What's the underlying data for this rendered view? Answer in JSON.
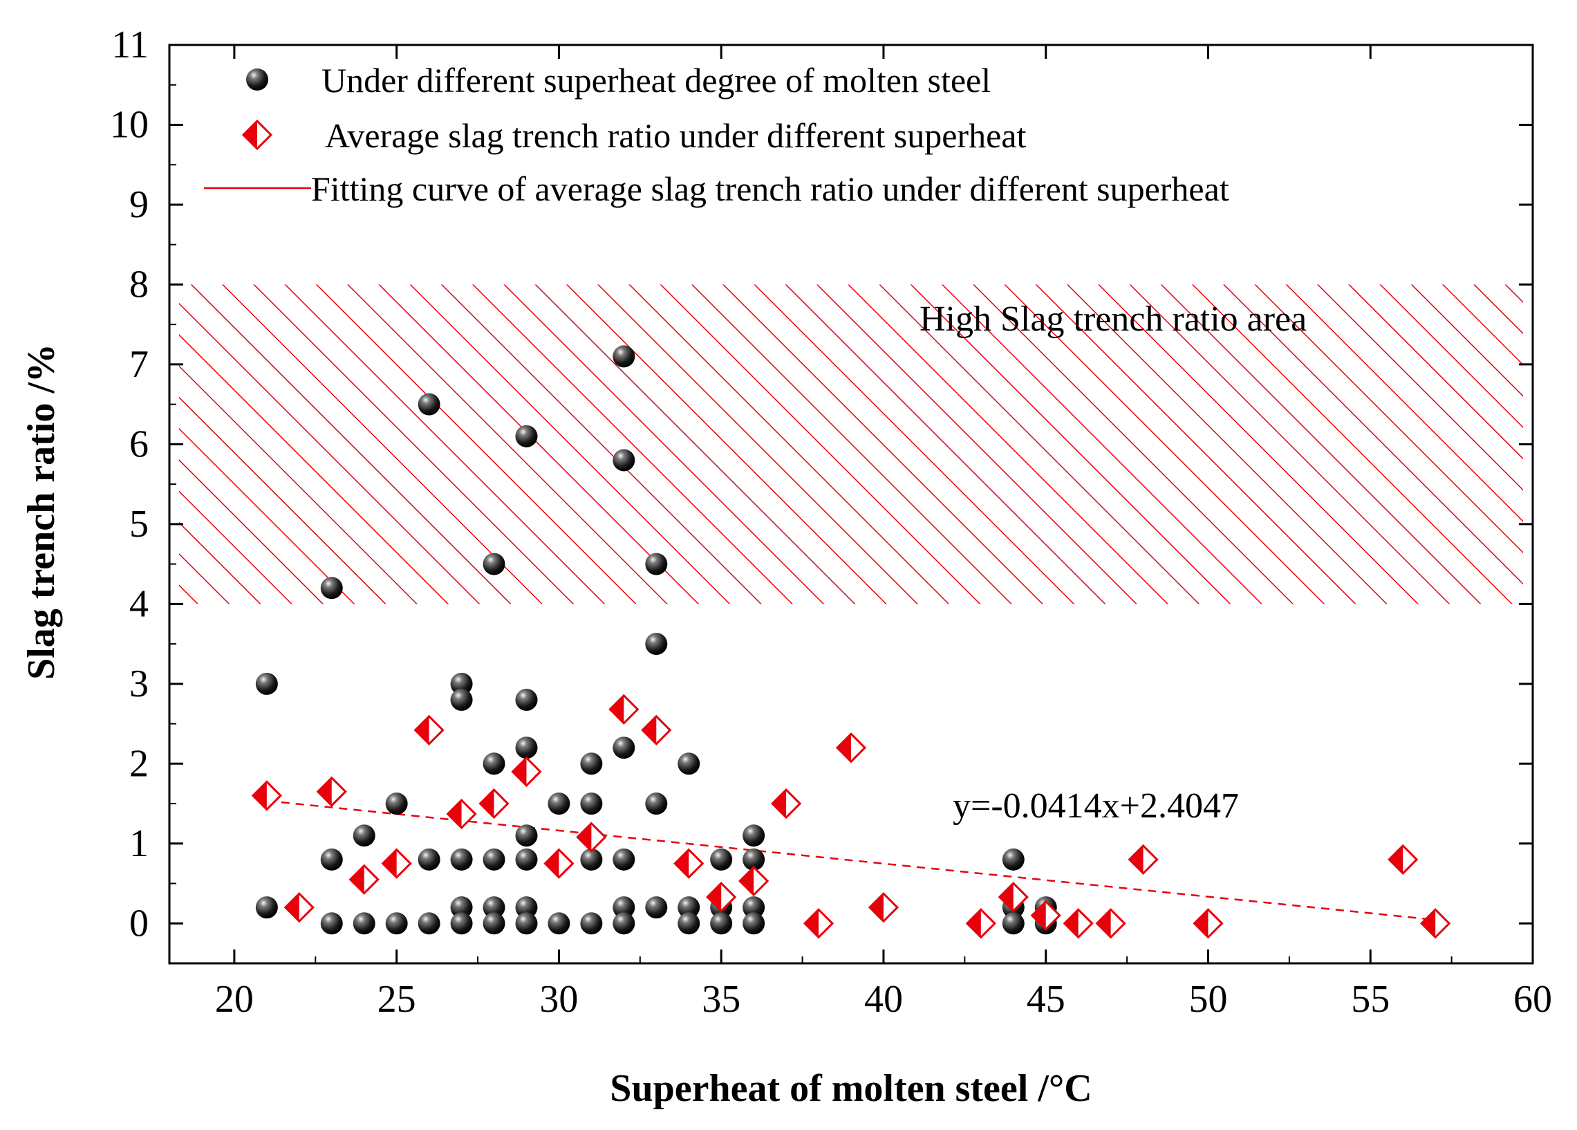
{
  "chart_data": {
    "type": "scatter",
    "xlabel": "Superheat of molten steel /°C",
    "ylabel": "Slag trench ratio /%",
    "xlim": [
      18,
      60
    ],
    "ylim": [
      -0.5,
      11
    ],
    "xticks": [
      "20",
      "25",
      "30",
      "35",
      "40",
      "45",
      "50",
      "55",
      "60"
    ],
    "yticks": [
      "0",
      "1",
      "2",
      "3",
      "4",
      "5",
      "6",
      "7",
      "8",
      "9",
      "10",
      "11"
    ],
    "grid": false,
    "legend_position": "top-left",
    "colors": {
      "individual": "#111111",
      "average": "#e8000b",
      "fit": "#e8000b",
      "hatch": "#e8000b"
    },
    "series": [
      {
        "name": "Under different superheat degree of molten steel",
        "marker": "sphere",
        "points": [
          [
            21,
            3.0
          ],
          [
            21,
            0.2
          ],
          [
            23,
            4.2
          ],
          [
            23,
            0.8
          ],
          [
            23,
            0.0
          ],
          [
            24,
            1.1
          ],
          [
            24,
            0.0
          ],
          [
            25,
            1.5
          ],
          [
            25,
            0.0
          ],
          [
            26,
            6.5
          ],
          [
            26,
            0.8
          ],
          [
            26,
            0.0
          ],
          [
            27,
            3.0
          ],
          [
            27,
            2.8
          ],
          [
            27,
            0.8
          ],
          [
            27,
            0.2
          ],
          [
            27,
            0.0
          ],
          [
            28,
            4.5
          ],
          [
            28,
            2.0
          ],
          [
            28,
            0.8
          ],
          [
            28,
            0.2
          ],
          [
            28,
            0.0
          ],
          [
            29,
            6.1
          ],
          [
            29,
            2.8
          ],
          [
            29,
            2.2
          ],
          [
            29,
            1.1
          ],
          [
            29,
            0.8
          ],
          [
            29,
            0.2
          ],
          [
            29,
            0.0
          ],
          [
            30,
            1.5
          ],
          [
            30,
            0.0
          ],
          [
            31,
            2.0
          ],
          [
            31,
            1.5
          ],
          [
            31,
            0.8
          ],
          [
            31,
            0.0
          ],
          [
            32,
            7.1
          ],
          [
            32,
            5.8
          ],
          [
            32,
            2.2
          ],
          [
            32,
            0.8
          ],
          [
            32,
            0.2
          ],
          [
            32,
            0.0
          ],
          [
            33,
            4.5
          ],
          [
            33,
            3.5
          ],
          [
            33,
            1.5
          ],
          [
            33,
            0.2
          ],
          [
            34,
            2.0
          ],
          [
            34,
            0.2
          ],
          [
            34,
            0.0
          ],
          [
            35,
            0.8
          ],
          [
            35,
            0.2
          ],
          [
            35,
            0.0
          ],
          [
            36,
            1.1
          ],
          [
            36,
            0.8
          ],
          [
            36,
            0.2
          ],
          [
            36,
            0.0
          ],
          [
            44,
            0.8
          ],
          [
            44,
            0.2
          ],
          [
            44,
            0.0
          ],
          [
            45,
            0.2
          ],
          [
            45,
            0.0
          ]
        ]
      },
      {
        "name": "Average slag trench ratio under different superheat",
        "marker": "half-filled-diamond",
        "points": [
          [
            21,
            1.6
          ],
          [
            22,
            0.2
          ],
          [
            23,
            1.65
          ],
          [
            24,
            0.55
          ],
          [
            25,
            0.75
          ],
          [
            26,
            2.42
          ],
          [
            27,
            1.37
          ],
          [
            28,
            1.5
          ],
          [
            29,
            1.9
          ],
          [
            30,
            0.75
          ],
          [
            31,
            1.08
          ],
          [
            32,
            2.68
          ],
          [
            33,
            2.42
          ],
          [
            34,
            0.75
          ],
          [
            35,
            0.33
          ],
          [
            36,
            0.53
          ],
          [
            37,
            1.5
          ],
          [
            38,
            0.0
          ],
          [
            39,
            2.2
          ],
          [
            40,
            0.2
          ],
          [
            43,
            0.0
          ],
          [
            44,
            0.33
          ],
          [
            45,
            0.1
          ],
          [
            46,
            0.0
          ],
          [
            47,
            0.0
          ],
          [
            48,
            0.8
          ],
          [
            50,
            0.0
          ],
          [
            56,
            0.8
          ],
          [
            57,
            0.0
          ]
        ]
      },
      {
        "name": "Fitting curve of average slag trench ratio under different superheat",
        "type": "line",
        "style": "dashed",
        "slope": -0.0414,
        "intercept": 2.4047,
        "x_range": [
          21,
          57
        ]
      }
    ],
    "annotations": [
      {
        "text": "High Slag trench ratio area",
        "region_y": [
          4,
          8
        ]
      },
      {
        "text": "y=-0.0414x+2.4047"
      }
    ]
  }
}
